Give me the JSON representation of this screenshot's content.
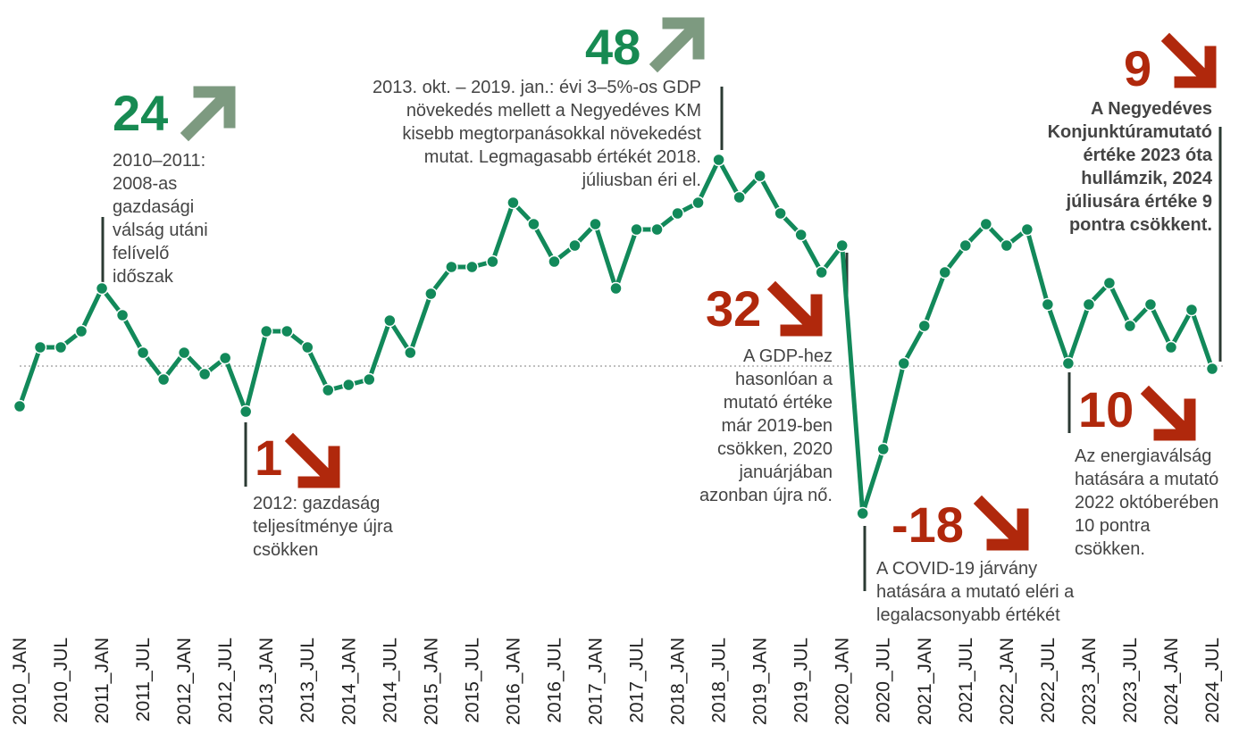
{
  "chart_data": {
    "type": "line",
    "categories": [
      "2010_JAN",
      null,
      "2010_JUL",
      null,
      "2011_JAN",
      null,
      "2011_JUL",
      null,
      "2012_JAN",
      null,
      "2012_JUL",
      null,
      "2013_JAN",
      null,
      "2013_JUL",
      null,
      "2014_JAN",
      null,
      "2014_JUL",
      null,
      "2015_JAN",
      null,
      "2015_JUL",
      null,
      "2016_JAN",
      null,
      "2016_JUL",
      null,
      "2017_JAN",
      null,
      "2017_JUL",
      null,
      "2018_JAN",
      null,
      "2018_JUL",
      null,
      "2019_JAN",
      null,
      "2019_JUL",
      null,
      "2020_JAN",
      null,
      "2020_JUL",
      null,
      "2021_JAN",
      null,
      "2021_JUL",
      null,
      "2022_JAN",
      null,
      "2022_JUL",
      null,
      "2023_JAN",
      null,
      "2023_JUL",
      null,
      "2024_JAN",
      null,
      "2024_JUL"
    ],
    "values": [
      2,
      13,
      13,
      16,
      24,
      19,
      12,
      7,
      12,
      8,
      11,
      1,
      16,
      16,
      13,
      5,
      6,
      7,
      18,
      12,
      23,
      28,
      28,
      29,
      40,
      36,
      29,
      32,
      36,
      24,
      35,
      35,
      38,
      40,
      48,
      41,
      45,
      38,
      34,
      27,
      32,
      -18,
      -6,
      10,
      17,
      27,
      32,
      36,
      32,
      35,
      21,
      10,
      21,
      25,
      17,
      21,
      13,
      20,
      9
    ],
    "color": "#12895a",
    "ylim": [
      -20,
      50
    ],
    "reference_line": 9.5,
    "annotations": [
      {
        "value": 24,
        "color": "#178a52",
        "lines": [
          "2010–2011:",
          "2008-as",
          "gazdasági",
          "válság utáni",
          "felívelő",
          "időszak"
        ]
      },
      {
        "value": 1,
        "color": "#b0280c",
        "lines": [
          "2012: gazdaság",
          "teljesítménye újra",
          "csökken"
        ]
      },
      {
        "value": 48,
        "color": "#178a52",
        "lines": [
          "2013. okt. – 2019. jan.: évi 3–5%-os GDP",
          "növekedés mellett a Negyedéves KM",
          "kisebb megtorpanásokkal növekedést",
          "mutat. Legmagasabb értékét 2018.",
          "júliusban éri el."
        ]
      },
      {
        "value": 32,
        "color": "#b0280c",
        "lines": [
          "A GDP-hez",
          "hasonlóan a",
          "mutató értéke",
          "már 2019-ben",
          "csökken, 2020",
          "januárjában",
          "azonban újra nő."
        ]
      },
      {
        "value": -18,
        "color": "#b0280c",
        "lines": [
          "A COVID-19 járvány",
          "hatására a mutató eléri a",
          "legalacsonyabb értékét"
        ]
      },
      {
        "value": 10,
        "color": "#b0280c",
        "lines": [
          "Az energiaválság",
          "hatására a mutató",
          "2022 októberében",
          "10 pontra",
          "csökken."
        ]
      },
      {
        "value": 9,
        "color": "#b0280c",
        "lines": [
          "A Negyedéves",
          "Konjunktúramutató",
          "értéke 2023 óta",
          "hullámzik, 2024",
          "júliusára értéke 9",
          "pontra csökkent."
        ]
      }
    ]
  }
}
